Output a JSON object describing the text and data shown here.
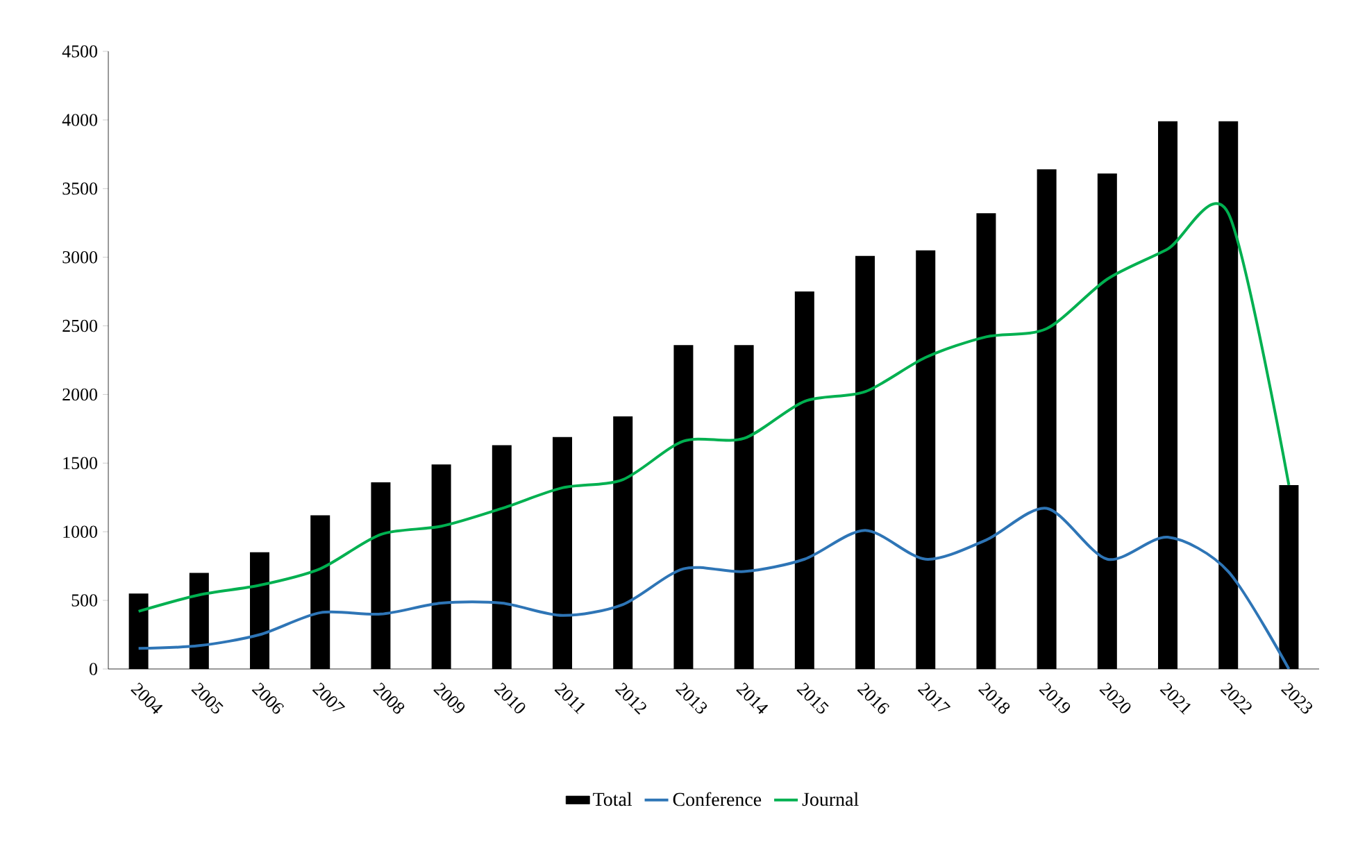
{
  "chart_data": {
    "type": "bar",
    "categories": [
      "2004",
      "2005",
      "2006",
      "2007",
      "2008",
      "2009",
      "2010",
      "2011",
      "2012",
      "2013",
      "2014",
      "2015",
      "2016",
      "2017",
      "2018",
      "2019",
      "2020",
      "2021",
      "2022",
      "2023"
    ],
    "series": [
      {
        "name": "Total",
        "color": "#000000",
        "values": [
          550,
          700,
          850,
          1120,
          1360,
          1490,
          1630,
          1690,
          1840,
          2360,
          2360,
          2750,
          3010,
          3050,
          3320,
          3640,
          3610,
          3990,
          3990,
          1340
        ]
      },
      {
        "name": "Conference",
        "type": "line",
        "color": "#2e75b6",
        "values": [
          150,
          170,
          250,
          410,
          400,
          480,
          480,
          390,
          470,
          730,
          710,
          800,
          1010,
          800,
          940,
          1170,
          800,
          960,
          710,
          0
        ]
      },
      {
        "name": "Journal",
        "type": "line",
        "color": "#00b050",
        "values": [
          420,
          540,
          610,
          730,
          980,
          1040,
          1170,
          1320,
          1380,
          1660,
          1680,
          1950,
          2020,
          2270,
          2420,
          2480,
          2840,
          3060,
          3320,
          1340
        ]
      }
    ],
    "ylim": [
      0,
      4500
    ],
    "yticks": [
      0,
      500,
      1000,
      1500,
      2000,
      2500,
      3000,
      3500,
      4000,
      4500
    ],
    "legend": "bottom",
    "grid": false,
    "marker": "none",
    "line_style": "solid"
  }
}
